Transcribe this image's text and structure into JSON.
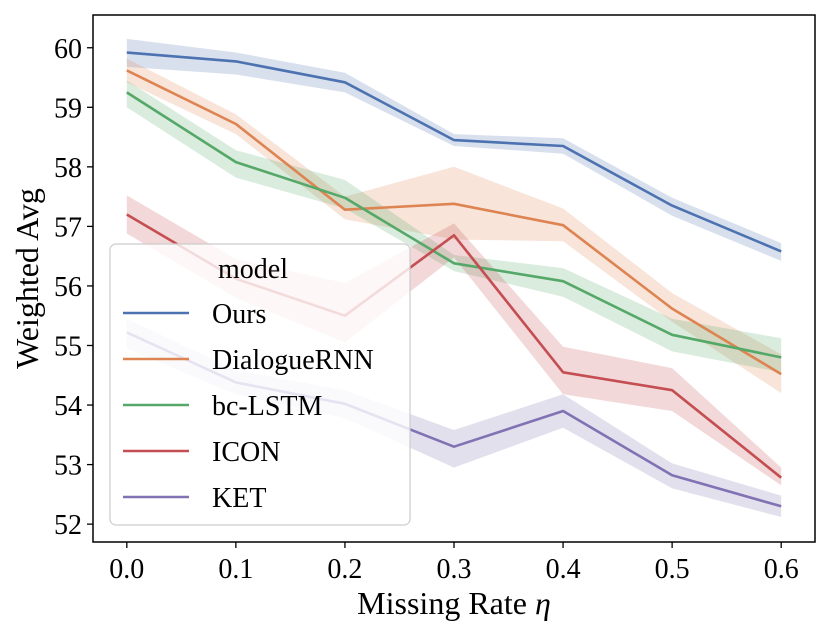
{
  "chart_data": {
    "type": "line",
    "title": "",
    "xlabel": "Missing Rate",
    "xlabel_symbol": "η",
    "ylabel": "Weighted Avg",
    "x": [
      0.0,
      0.1,
      0.2,
      0.3,
      0.4,
      0.5,
      0.6
    ],
    "x_tick_labels": [
      "0.0",
      "0.1",
      "0.2",
      "0.3",
      "0.4",
      "0.5",
      "0.6"
    ],
    "y_ticks": [
      52,
      53,
      54,
      55,
      56,
      57,
      58,
      59,
      60
    ],
    "y_tick_labels": [
      "52",
      "53",
      "54",
      "55",
      "56",
      "57",
      "58",
      "59",
      "60"
    ],
    "xlim": [
      -0.031,
      0.631
    ],
    "ylim": [
      51.7,
      60.55
    ],
    "grid": false,
    "legend": {
      "title": "model",
      "position": "lower-left"
    },
    "series": [
      {
        "name": "Ours",
        "color": "#4c72b0",
        "values": [
          59.92,
          59.77,
          59.42,
          58.45,
          58.35,
          57.35,
          56.58
        ],
        "lower": [
          59.68,
          59.55,
          59.25,
          58.35,
          58.22,
          57.18,
          56.42
        ],
        "upper": [
          60.15,
          59.92,
          59.58,
          58.55,
          58.48,
          57.48,
          56.72
        ]
      },
      {
        "name": "DialogueRNN",
        "color": "#dd8452",
        "values": [
          59.62,
          58.72,
          57.28,
          57.38,
          57.02,
          55.62,
          54.52
        ],
        "lower": [
          59.42,
          58.55,
          57.12,
          56.78,
          56.75,
          55.4,
          54.2
        ],
        "upper": [
          59.82,
          58.88,
          57.5,
          58.0,
          57.3,
          55.88,
          54.85
        ]
      },
      {
        "name": "bc-LSTM",
        "color": "#55a868",
        "values": [
          59.25,
          58.08,
          57.48,
          56.38,
          56.08,
          55.18,
          54.8
        ],
        "lower": [
          59.0,
          57.82,
          57.3,
          56.25,
          55.82,
          54.9,
          54.55
        ],
        "upper": [
          59.45,
          58.28,
          57.78,
          56.52,
          56.3,
          55.45,
          55.12
        ]
      },
      {
        "name": "ICON",
        "color": "#c44e52",
        "values": [
          57.2,
          56.12,
          55.5,
          56.85,
          54.55,
          54.25,
          52.78
        ],
        "lower": [
          56.88,
          55.8,
          55.05,
          56.48,
          54.18,
          53.9,
          52.65
        ],
        "upper": [
          57.52,
          56.45,
          56.05,
          57.05,
          54.98,
          54.62,
          52.95
        ]
      },
      {
        "name": "KET",
        "color": "#8172b3",
        "values": [
          55.22,
          54.38,
          54.02,
          53.3,
          53.9,
          52.82,
          52.3
        ],
        "lower": [
          54.95,
          54.18,
          53.78,
          52.95,
          53.62,
          52.6,
          52.12
        ],
        "upper": [
          55.45,
          54.58,
          54.25,
          53.58,
          54.18,
          53.02,
          52.48
        ]
      }
    ]
  }
}
